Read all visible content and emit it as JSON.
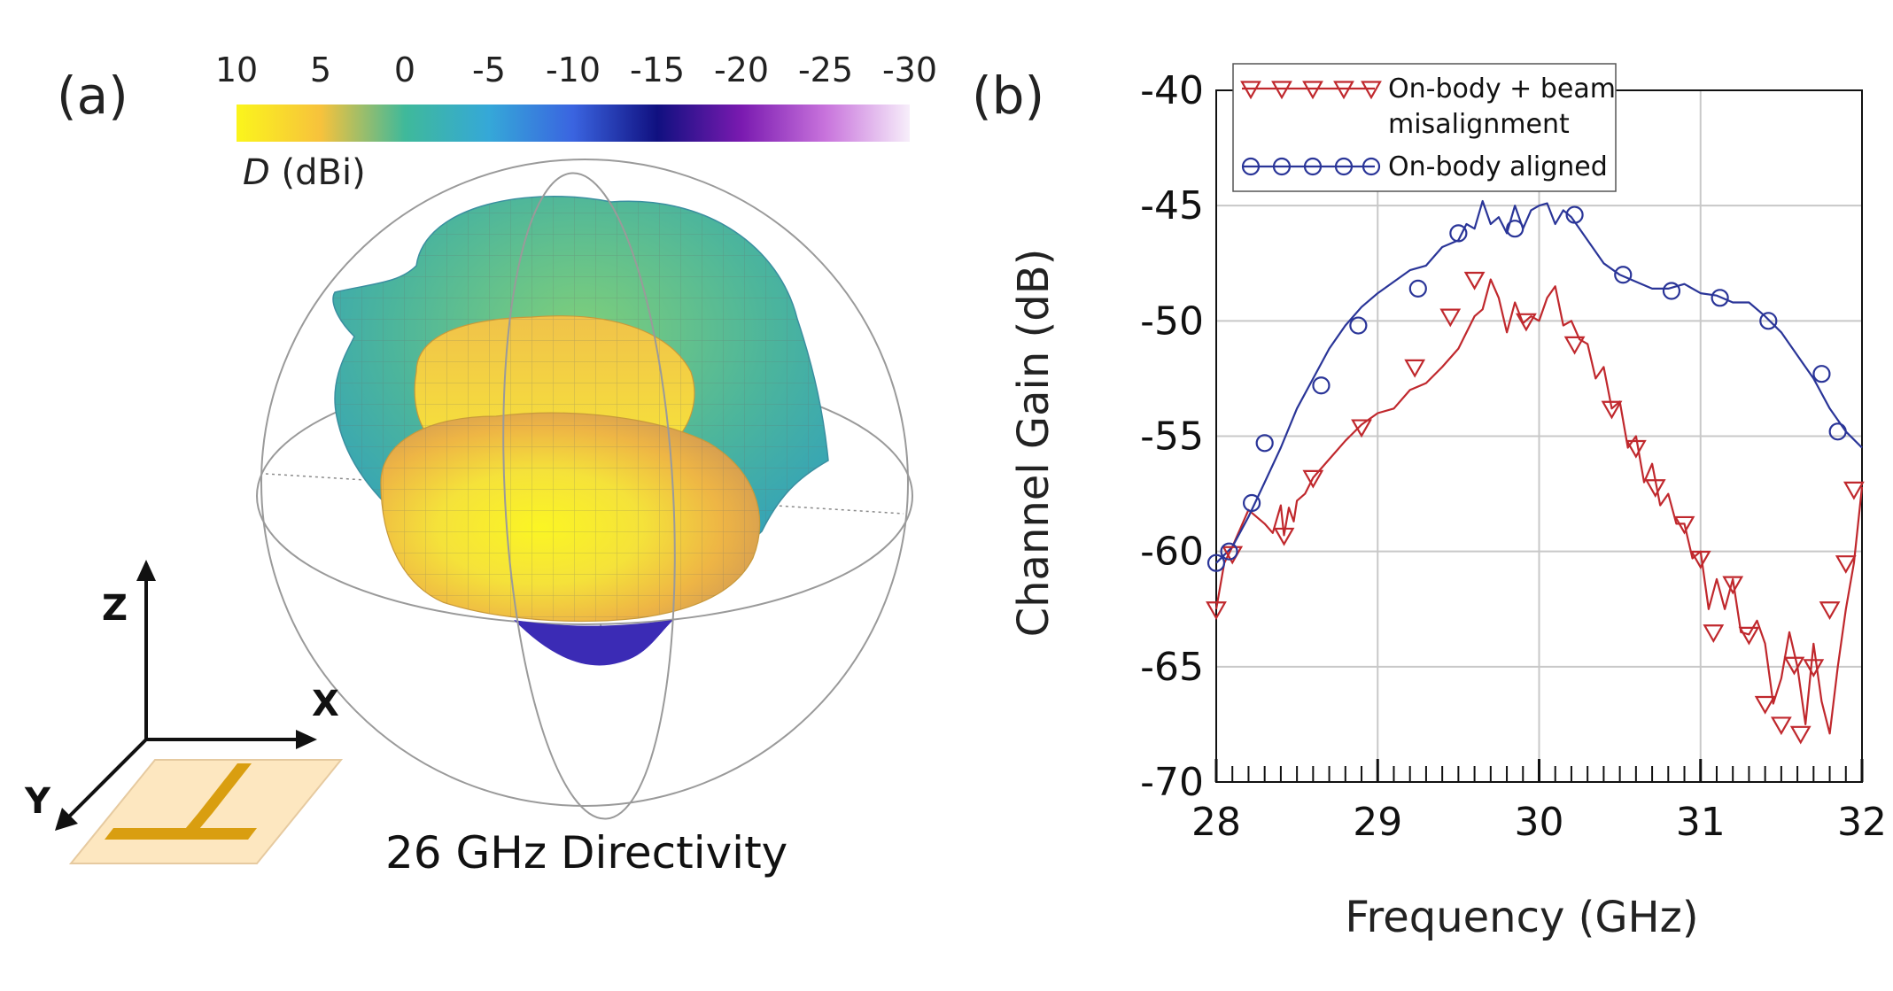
{
  "panel_a": {
    "label": "(a)",
    "colorbar": {
      "ticks": [
        "10",
        "5",
        "0",
        "-5",
        "-10",
        "-15",
        "-20",
        "-25",
        "-30"
      ],
      "label_italic": "D",
      "label_rest": " (dBi)",
      "colors": [
        "#fbf51c",
        "#f7c23c",
        "#3fb99a",
        "#35a8d8",
        "#3a64e0",
        "#101080",
        "#7a1ab0",
        "#c873dc",
        "#f7eefa"
      ]
    },
    "caption": "26 GHz Directivity",
    "axes": {
      "z": "Z",
      "x": "X",
      "y": "Y"
    },
    "surface_colors": {
      "yellow": "#f4ee2a",
      "orange": "#f0b040",
      "green": "#5fc08a",
      "cyan": "#39a8b8",
      "purple": "#3828b0"
    },
    "antenna_colors": {
      "substrate": "#fde7c0",
      "metal": "#d99e10"
    }
  },
  "panel_b": {
    "label": "(b)",
    "chart_data": {
      "type": "line",
      "title": "",
      "xlabel": "Frequency (GHz)",
      "ylabel": "Channel Gain (dB)",
      "xlim": [
        28,
        32
      ],
      "ylim": [
        -70,
        -40
      ],
      "xticks": [
        "28",
        "29",
        "30",
        "31",
        "32"
      ],
      "yticks": [
        "-40",
        "-45",
        "-50",
        "-55",
        "-60",
        "-65",
        "-70"
      ],
      "grid": true,
      "legend_position": "top-left",
      "series": [
        {
          "name": "On-body + beam misalignment",
          "legend_lines": [
            "On-body + beam",
            "misalignment"
          ],
          "color": "#c0282d",
          "marker": "triangle-down",
          "x": [
            28.0,
            28.05,
            28.1,
            28.2,
            28.3,
            28.35,
            28.4,
            28.42,
            28.45,
            28.48,
            28.5,
            28.55,
            28.6,
            28.7,
            28.8,
            28.9,
            29.0,
            29.1,
            29.2,
            29.3,
            29.4,
            29.5,
            29.6,
            29.65,
            29.7,
            29.75,
            29.8,
            29.85,
            29.9,
            29.95,
            30.0,
            30.05,
            30.1,
            30.15,
            30.2,
            30.25,
            30.3,
            30.35,
            30.4,
            30.45,
            30.5,
            30.55,
            30.6,
            30.65,
            30.7,
            30.75,
            30.8,
            30.85,
            30.9,
            30.95,
            31.0,
            31.05,
            31.1,
            31.15,
            31.2,
            31.25,
            31.3,
            31.35,
            31.4,
            31.45,
            31.5,
            31.55,
            31.6,
            31.65,
            31.7,
            31.75,
            31.8,
            31.85,
            31.9,
            31.95,
            32.0
          ],
          "y": [
            -62.5,
            -60.5,
            -59.8,
            -58.2,
            -58.8,
            -59.2,
            -58.0,
            -59.3,
            -58.1,
            -58.7,
            -57.8,
            -57.5,
            -56.8,
            -56.0,
            -55.2,
            -54.5,
            -54.0,
            -53.8,
            -53.0,
            -52.7,
            -52.0,
            -51.2,
            -49.8,
            -49.5,
            -48.2,
            -49.0,
            -50.5,
            -49.2,
            -50.1,
            -49.8,
            -50.0,
            -49.0,
            -48.5,
            -50.2,
            -50.0,
            -50.8,
            -51.0,
            -52.5,
            -52.0,
            -53.8,
            -53.5,
            -55.5,
            -55.0,
            -57.0,
            -56.2,
            -58.0,
            -57.5,
            -58.8,
            -58.8,
            -60.3,
            -60.0,
            -62.5,
            -61.2,
            -62.5,
            -61.2,
            -63.5,
            -63.6,
            -63.0,
            -64.0,
            -66.6,
            -65.5,
            -63.5,
            -65.0,
            -67.5,
            -64.0,
            -66.5,
            -67.9,
            -65.0,
            -62.5,
            -60.5,
            -57.2
          ],
          "markers": [
            [
              28.0,
              -62.5
            ],
            [
              28.1,
              -60.1
            ],
            [
              28.42,
              -59.3
            ],
            [
              28.6,
              -56.8
            ],
            [
              28.9,
              -54.6
            ],
            [
              29.23,
              -52.0
            ],
            [
              29.45,
              -49.8
            ],
            [
              29.6,
              -48.2
            ],
            [
              29.92,
              -50.0
            ],
            [
              30.22,
              -51.0
            ],
            [
              30.45,
              -53.8
            ],
            [
              30.6,
              -55.5
            ],
            [
              30.72,
              -57.2
            ],
            [
              30.9,
              -58.8
            ],
            [
              31.0,
              -60.3
            ],
            [
              31.08,
              -63.5
            ],
            [
              31.2,
              -61.4
            ],
            [
              31.3,
              -63.6
            ],
            [
              31.4,
              -66.6
            ],
            [
              31.5,
              -67.5
            ],
            [
              31.58,
              -64.9
            ],
            [
              31.62,
              -67.9
            ],
            [
              31.7,
              -65.0
            ],
            [
              31.8,
              -62.5
            ],
            [
              31.9,
              -60.5
            ],
            [
              31.95,
              -57.3
            ]
          ]
        },
        {
          "name": "On-body aligned",
          "legend_lines": [
            "On-body aligned"
          ],
          "color": "#2a3598",
          "marker": "circle",
          "x": [
            28.0,
            28.1,
            28.2,
            28.3,
            28.4,
            28.5,
            28.6,
            28.7,
            28.8,
            28.9,
            29.0,
            29.1,
            29.2,
            29.3,
            29.4,
            29.5,
            29.55,
            29.6,
            29.65,
            29.7,
            29.75,
            29.8,
            29.85,
            29.9,
            29.95,
            30.0,
            30.05,
            30.1,
            30.15,
            30.2,
            30.25,
            30.3,
            30.4,
            30.5,
            30.6,
            30.7,
            30.8,
            30.9,
            31.0,
            31.1,
            31.2,
            31.3,
            31.4,
            31.5,
            31.6,
            31.7,
            31.8,
            31.9,
            32.0
          ],
          "y": [
            -60.5,
            -59.8,
            -58.5,
            -57.0,
            -55.5,
            -53.8,
            -52.5,
            -51.2,
            -50.2,
            -49.4,
            -48.8,
            -48.3,
            -47.8,
            -47.6,
            -46.8,
            -46.5,
            -45.8,
            -46.0,
            -44.8,
            -45.8,
            -45.5,
            -46.2,
            -45.0,
            -46.0,
            -45.2,
            -45.0,
            -44.9,
            -45.8,
            -45.2,
            -45.5,
            -46.0,
            -46.5,
            -47.5,
            -48.0,
            -48.3,
            -48.6,
            -48.6,
            -48.4,
            -48.8,
            -48.9,
            -49.2,
            -49.2,
            -49.8,
            -50.5,
            -51.5,
            -52.5,
            -53.8,
            -54.8,
            -55.5
          ],
          "markers": [
            [
              28.0,
              -60.5
            ],
            [
              28.08,
              -60.0
            ],
            [
              28.22,
              -57.9
            ],
            [
              28.3,
              -55.3
            ],
            [
              28.65,
              -52.8
            ],
            [
              28.88,
              -50.2
            ],
            [
              29.25,
              -48.6
            ],
            [
              29.5,
              -46.2
            ],
            [
              29.85,
              -46.0
            ],
            [
              30.22,
              -45.4
            ],
            [
              30.52,
              -48.0
            ],
            [
              30.82,
              -48.7
            ],
            [
              31.12,
              -49.0
            ],
            [
              31.42,
              -50.0
            ],
            [
              31.75,
              -52.3
            ],
            [
              31.85,
              -54.8
            ]
          ]
        }
      ]
    }
  }
}
